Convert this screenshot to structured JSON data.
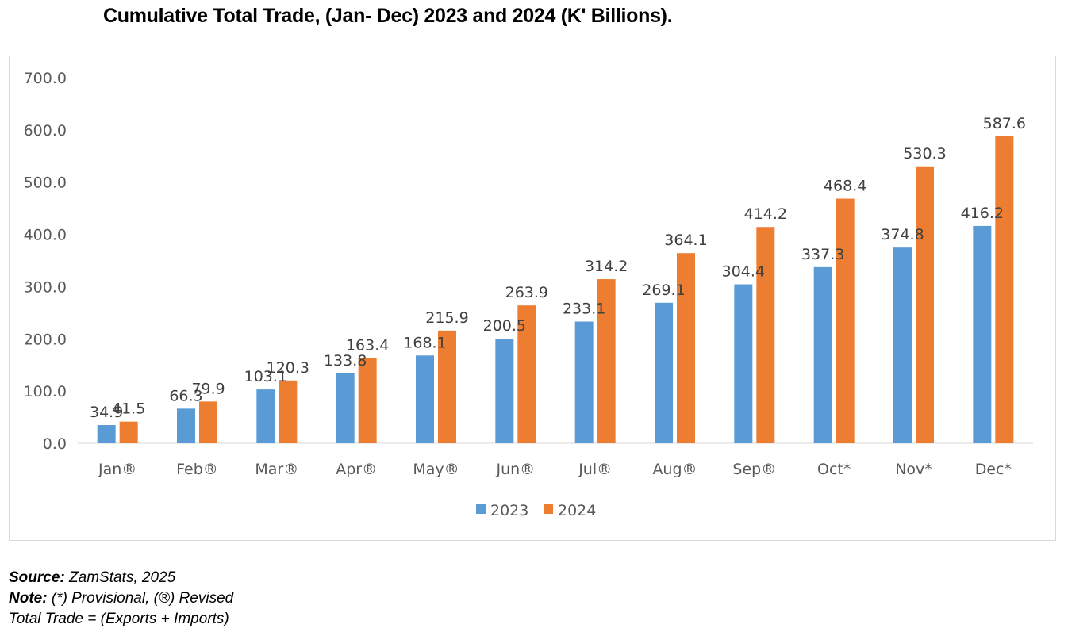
{
  "chart_data": {
    "type": "bar",
    "title": "Cumulative Total Trade, (Jan- Dec) 2023 and 2024 (K' Billions).",
    "categories": [
      "Jan®",
      "Feb®",
      "Mar®",
      "Apr®",
      "May®",
      "Jun®",
      "Jul®",
      "Aug®",
      "Sep®",
      "Oct*",
      "Nov*",
      "Dec*"
    ],
    "series": [
      {
        "name": "2023",
        "color": "#5b9bd5",
        "values": [
          34.9,
          66.3,
          103.1,
          133.8,
          168.1,
          200.5,
          233.1,
          269.1,
          304.4,
          337.3,
          374.8,
          416.2
        ],
        "labels": [
          "34.9",
          "66.3",
          "103.1",
          "133.8",
          "168.1",
          "200.5",
          "233.1",
          "269.1",
          "304.4",
          "337.3",
          "374.8",
          "416.2"
        ]
      },
      {
        "name": "2024",
        "color": "#ed7d31",
        "values": [
          41.5,
          79.9,
          120.3,
          163.4,
          215.9,
          263.9,
          314.2,
          364.1,
          414.2,
          468.4,
          530.3,
          587.6
        ],
        "labels": [
          "41.5",
          "79.9",
          "120.3",
          "163.4",
          "215.9",
          "263.9",
          "314.2",
          "364.1",
          "414.2",
          "468.4",
          "530.3",
          "587.6"
        ]
      }
    ],
    "ylim": [
      0,
      700
    ],
    "yticks": [
      0,
      100,
      200,
      300,
      400,
      500,
      600,
      700
    ],
    "ytick_labels": [
      "0.0",
      "100.0",
      "200.0",
      "300.0",
      "400.0",
      "500.0",
      "600.0",
      "700.0"
    ],
    "xlabel": "",
    "ylabel": "",
    "grid": false,
    "legend": "bottom-center"
  },
  "footnotes": {
    "source_label": "Source:",
    "source_text": " ZamStats, 2025",
    "note_label": "Note:",
    "note_text": " (*) Provisional, (®) Revised",
    "formula_text": "Total Trade = (Exports + Imports)"
  }
}
